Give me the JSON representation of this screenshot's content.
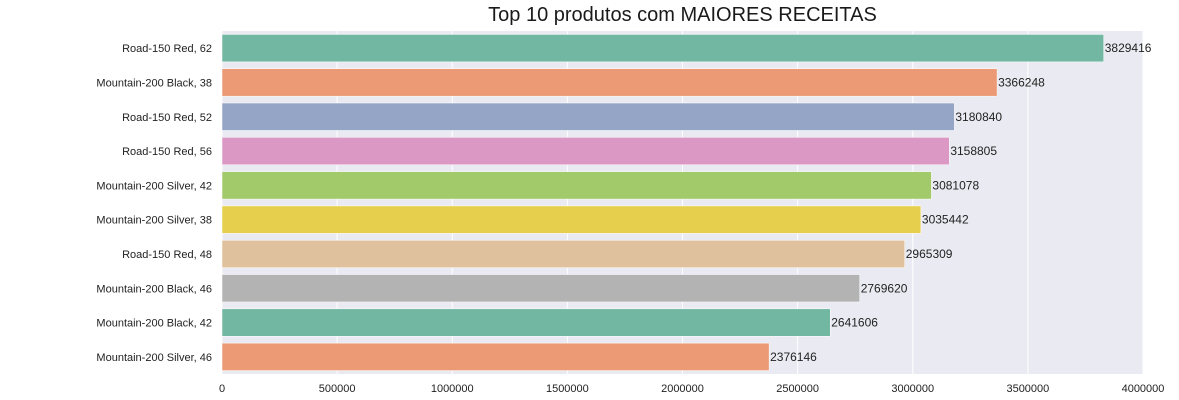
{
  "chart_data": {
    "type": "bar",
    "orientation": "horizontal",
    "title": "Top 10 produtos com MAIORES RECEITAS",
    "xlabel": "",
    "ylabel": "",
    "categories": [
      "Road-150 Red, 62",
      "Mountain-200 Black, 38",
      "Road-150 Red, 52",
      "Road-150 Red, 56",
      "Mountain-200 Silver, 42",
      "Mountain-200 Silver, 38",
      "Road-150 Red, 48",
      "Mountain-200 Black, 46",
      "Mountain-200 Black, 42",
      "Mountain-200 Silver, 46"
    ],
    "values": [
      3829416,
      3366248,
      3180840,
      3158805,
      3081078,
      3035442,
      2965309,
      2769620,
      2641606,
      2376146
    ],
    "data_labels": [
      "3829416",
      "3366248",
      "3180840",
      "3158805",
      "3081078",
      "3035442",
      "2965309",
      "2769620",
      "2641606",
      "2376146"
    ],
    "colors": [
      "#72b7a1",
      "#eb9a75",
      "#95a5c6",
      "#db98c5",
      "#a2c96a",
      "#e6cf4c",
      "#dfc19e",
      "#b3b3b3",
      "#72b7a1",
      "#eb9a75"
    ],
    "xlim": [
      0,
      4000000
    ],
    "xticks": [
      0,
      500000,
      1000000,
      1500000,
      2000000,
      2500000,
      3000000,
      3500000,
      4000000
    ],
    "xtick_labels": [
      "0",
      "500000",
      "1000000",
      "1500000",
      "2000000",
      "2500000",
      "3000000",
      "3500000",
      "4000000"
    ],
    "grid": true,
    "background": "#eaeaf2"
  }
}
